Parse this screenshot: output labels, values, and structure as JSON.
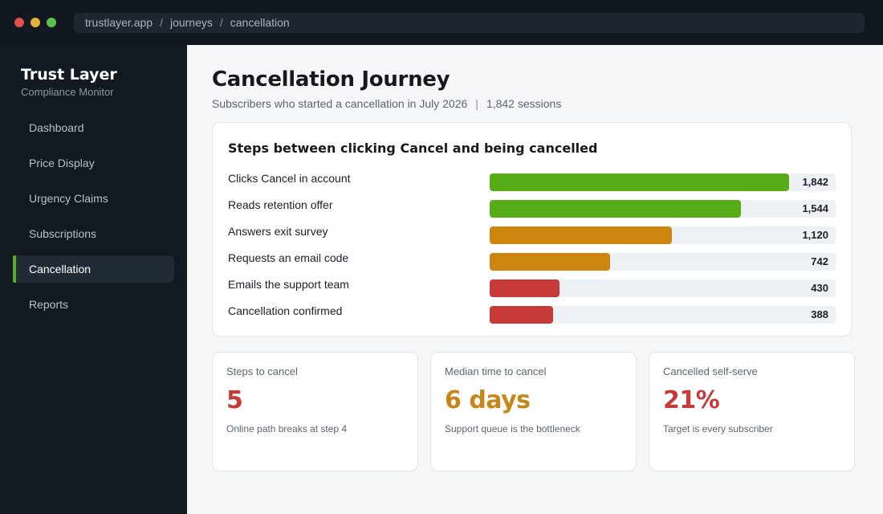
{
  "window": {
    "breadcrumb": [
      "trustlayer.app",
      "journeys",
      "cancellation"
    ],
    "breadcrumb_separator": "/"
  },
  "sidebar": {
    "brand": "Trust Layer",
    "subtitle": "Compliance Monitor",
    "items": [
      {
        "label": "Dashboard",
        "active": false
      },
      {
        "label": "Price Display",
        "active": false
      },
      {
        "label": "Urgency Claims",
        "active": false
      },
      {
        "label": "Subscriptions",
        "active": false
      },
      {
        "label": "Cancellation",
        "active": true
      },
      {
        "label": "Reports",
        "active": false
      }
    ]
  },
  "header": {
    "title": "Cancellation Journey",
    "subtitle": "Subscribers who started a cancellation in July 2026",
    "separator": "|",
    "sessions": "1,842 sessions"
  },
  "funnel": {
    "title": "Steps between clicking Cancel and being cancelled",
    "max": 1842,
    "steps": [
      {
        "label": "Clicks Cancel in account",
        "value": 1842,
        "display": "1,842",
        "color": "#56ad17"
      },
      {
        "label": "Reads retention offer",
        "value": 1544,
        "display": "1,544",
        "color": "#56ad17"
      },
      {
        "label": "Answers exit survey",
        "value": 1120,
        "display": "1,120",
        "color": "#cc860f"
      },
      {
        "label": "Requests an email code",
        "value": 742,
        "display": "742",
        "color": "#cc860f"
      },
      {
        "label": "Emails the support team",
        "value": 430,
        "display": "430",
        "color": "#c73a3a"
      },
      {
        "label": "Cancellation confirmed",
        "value": 388,
        "display": "388",
        "color": "#c73a3a"
      }
    ]
  },
  "stats": [
    {
      "label": "Steps to cancel",
      "value": "5",
      "note": "Online path breaks at step 4",
      "color": "#c73a3a"
    },
    {
      "label": "Median time to cancel",
      "value": "6 days",
      "note": "Support queue is the bottleneck",
      "color": "#c7861a"
    },
    {
      "label": "Cancelled self-serve",
      "value": "21%",
      "note": "Target is every subscriber",
      "color": "#c73a3a"
    }
  ]
}
